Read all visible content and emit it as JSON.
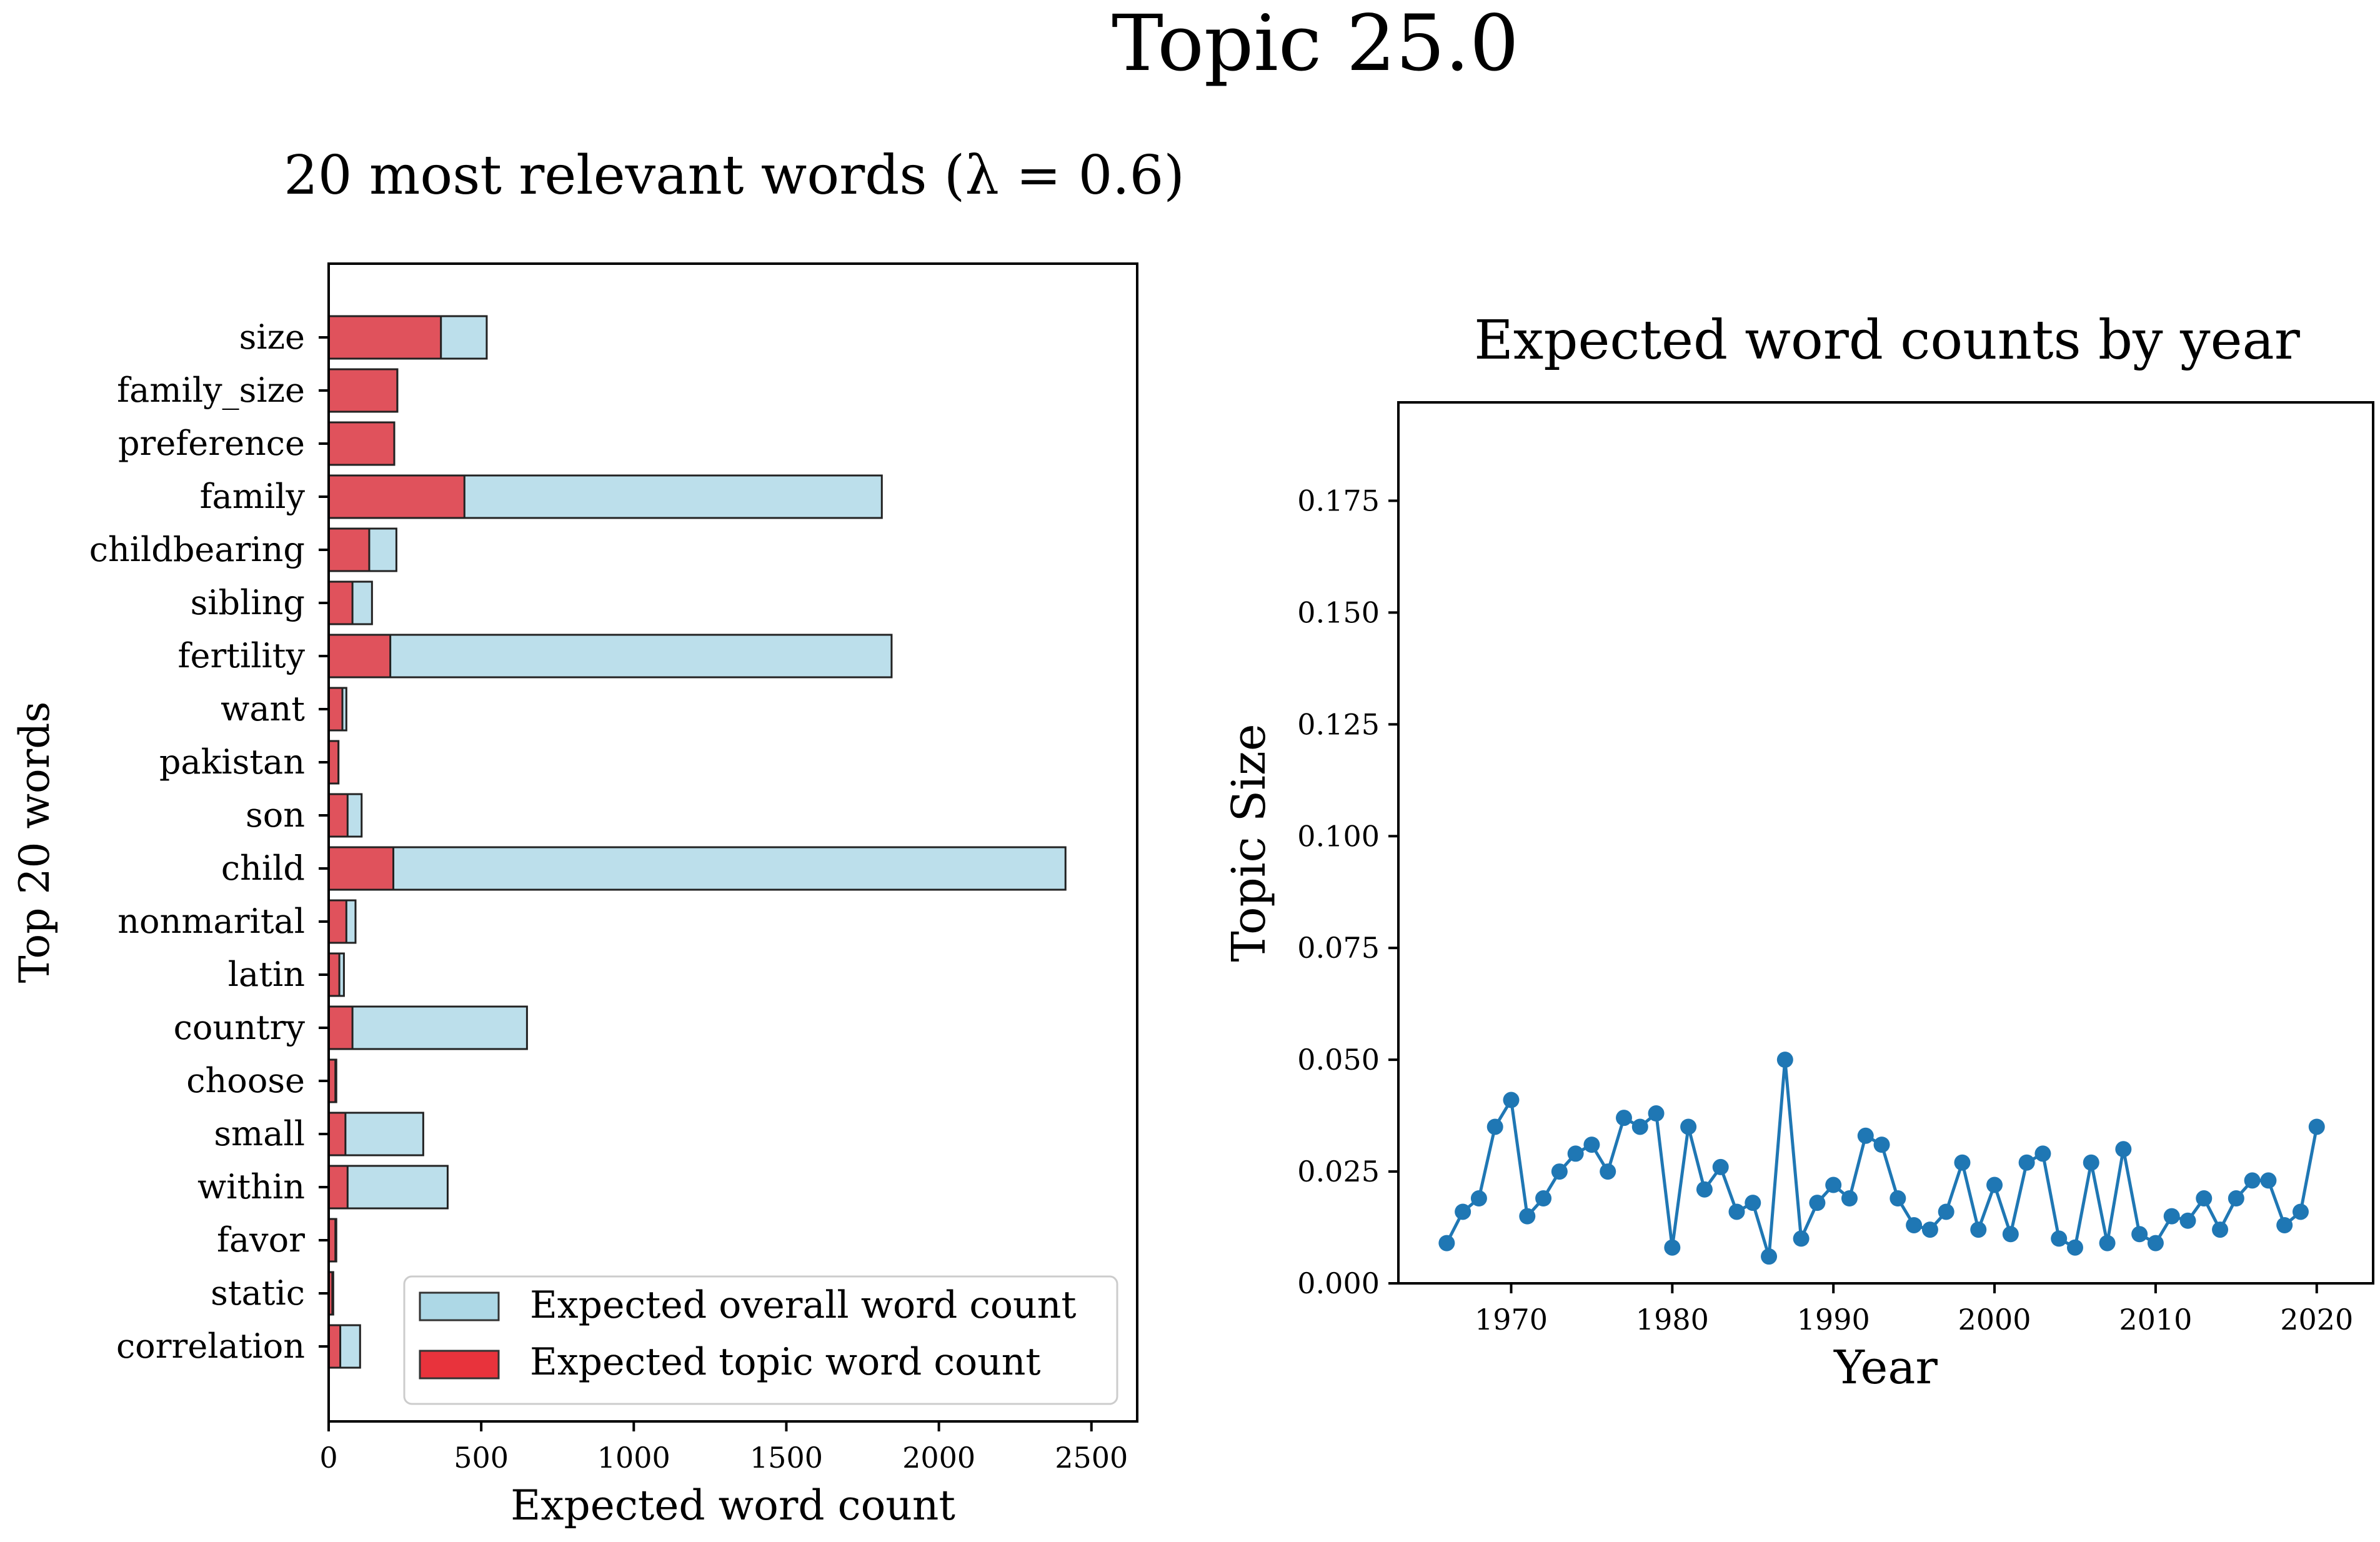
{
  "figure": {
    "suptitle": "Topic 25.0"
  },
  "chart_data": [
    {
      "type": "bar",
      "orientation": "horizontal",
      "title": "20 most relevant words (λ = 0.6)",
      "xlabel": "Expected word count",
      "ylabel": "Top 20 words",
      "xlim": [
        0,
        2650
      ],
      "xticks": [
        "0",
        "500",
        "1000",
        "1500",
        "2000",
        "2500"
      ],
      "xtick_values": [
        0,
        500,
        1000,
        1500,
        2000,
        2500
      ],
      "grid": false,
      "legend_position": "bottom-right",
      "categories": [
        "size",
        "family_size",
        "preference",
        "family",
        "childbearing",
        "sibling",
        "fertility",
        "want",
        "pakistan",
        "son",
        "child",
        "nonmarital",
        "latin",
        "country",
        "choose",
        "small",
        "within",
        "favor",
        "static",
        "correlation"
      ],
      "series": [
        {
          "name": "Expected overall word count",
          "color": "#add8e6",
          "values": [
            518,
            225,
            215,
            1813,
            222,
            142,
            1845,
            58,
            32,
            108,
            2415,
            88,
            50,
            650,
            25,
            310,
            390,
            25,
            15,
            103
          ]
        },
        {
          "name": "Expected topic word count",
          "color": "#e8333c",
          "values": [
            368,
            225,
            215,
            445,
            133,
            78,
            202,
            45,
            32,
            62,
            212,
            58,
            35,
            78,
            22,
            55,
            62,
            22,
            12,
            38
          ]
        }
      ]
    },
    {
      "type": "line",
      "title": "Expected word counts by year",
      "xlabel": "Year",
      "ylabel": "Topic Size",
      "xlim": [
        1963,
        2023.5
      ],
      "ylim": [
        0,
        0.197
      ],
      "xticks": [
        "1970",
        "1980",
        "1990",
        "2000",
        "2010",
        "2020"
      ],
      "xtick_values": [
        1970,
        1980,
        1990,
        2000,
        2010,
        2020
      ],
      "yticks": [
        "0.000",
        "0.025",
        "0.050",
        "0.075",
        "0.100",
        "0.125",
        "0.150",
        "0.175"
      ],
      "ytick_values": [
        0,
        0.025,
        0.05,
        0.075,
        0.1,
        0.125,
        0.15,
        0.175
      ],
      "grid": false,
      "series": [
        {
          "color": "#1f77b4",
          "x": [
            1966,
            1967,
            1968,
            1969,
            1970,
            1971,
            1972,
            1973,
            1974,
            1975,
            1976,
            1977,
            1978,
            1979,
            1980,
            1981,
            1982,
            1983,
            1984,
            1985,
            1986,
            1987,
            1988,
            1989,
            1990,
            1991,
            1992,
            1993,
            1994,
            1995,
            1996,
            1997,
            1998,
            1999,
            2000,
            2001,
            2002,
            2003,
            2004,
            2005,
            2006,
            2007,
            2008,
            2009,
            2010,
            2011,
            2012,
            2013,
            2014,
            2015,
            2016,
            2017,
            2018,
            2019,
            2020
          ],
          "y": [
            0.009,
            0.016,
            0.019,
            0.035,
            0.041,
            0.015,
            0.019,
            0.025,
            0.029,
            0.031,
            0.025,
            0.037,
            0.035,
            0.038,
            0.008,
            0.035,
            0.021,
            0.026,
            0.016,
            0.018,
            0.006,
            0.05,
            0.01,
            0.018,
            0.022,
            0.019,
            0.033,
            0.031,
            0.019,
            0.013,
            0.012,
            0.016,
            0.027,
            0.012,
            0.022,
            0.011,
            0.027,
            0.029,
            0.01,
            0.008,
            0.027,
            0.009,
            0.03,
            0.011,
            0.009,
            0.015,
            0.014,
            0.019,
            0.012,
            0.019,
            0.023,
            0.023,
            0.013,
            0.016,
            0.035
          ]
        }
      ]
    }
  ]
}
